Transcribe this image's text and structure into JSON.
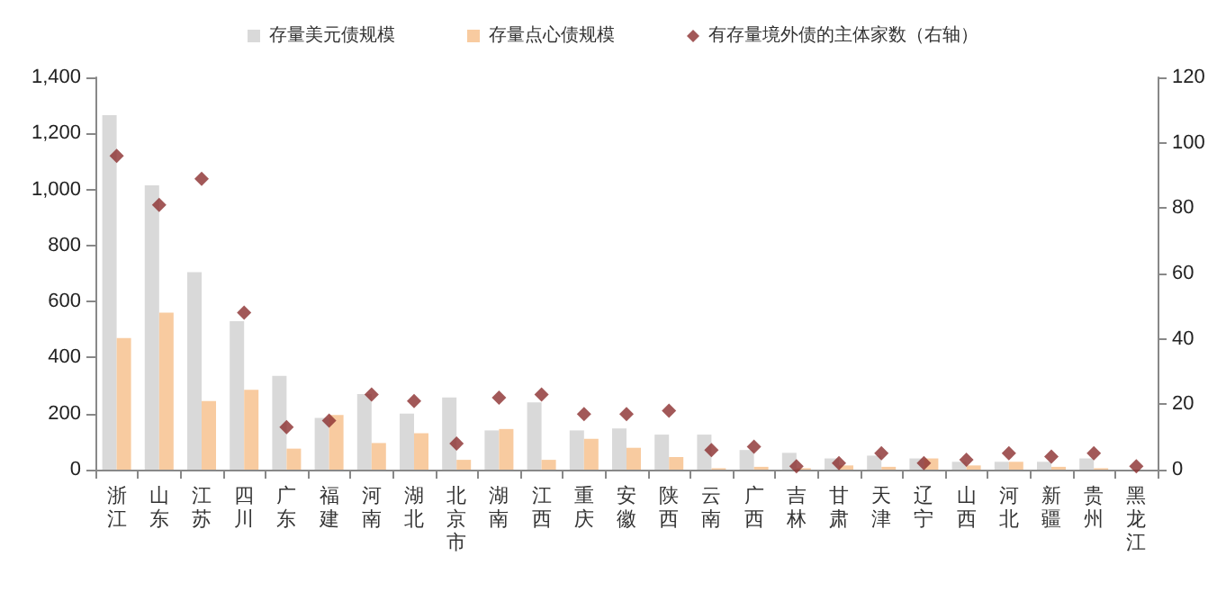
{
  "chart_data": {
    "type": "bar",
    "categories": [
      "浙江",
      "山东",
      "江苏",
      "四川",
      "广东",
      "福建",
      "河南",
      "湖北",
      "北京市",
      "湖南",
      "江西",
      "重庆",
      "安徽",
      "陕西",
      "云南",
      "广西",
      "吉林",
      "甘肃",
      "天津",
      "辽宁",
      "山西",
      "河北",
      "新疆",
      "贵州",
      "黑龙江"
    ],
    "series": [
      {
        "name": "存量美元债规模",
        "color": "#d9d9d9",
        "values": [
          1265,
          1015,
          705,
          530,
          335,
          185,
          270,
          200,
          258,
          140,
          240,
          140,
          147,
          125,
          125,
          70,
          60,
          40,
          50,
          40,
          28,
          28,
          28,
          40,
          null
        ]
      },
      {
        "name": "存量点心债规模",
        "color": "#f8cba0",
        "values": [
          470,
          560,
          245,
          285,
          75,
          195,
          95,
          130,
          35,
          145,
          35,
          110,
          78,
          45,
          5,
          10,
          5,
          15,
          10,
          40,
          15,
          28,
          10,
          5,
          0
        ]
      },
      {
        "name": "有存量境外债的主体家数（右轴）",
        "type": "scatter",
        "axis": "y2",
        "color": "#8b2e2e",
        "marker": "diamond",
        "values": [
          96,
          81,
          89,
          48,
          13,
          15,
          23,
          21,
          8,
          22,
          23,
          17,
          17,
          18,
          6,
          7,
          1,
          2,
          5,
          2,
          3,
          5,
          4,
          5,
          1
        ]
      }
    ],
    "ylim": [
      0,
      1400
    ],
    "yticks": [
      0,
      200,
      400,
      600,
      800,
      {
        "value": 1000,
        "label": "1,000"
      },
      {
        "value": 1200,
        "label": "1,200"
      },
      {
        "value": 1400,
        "label": "1,400"
      }
    ],
    "y2lim": [
      0,
      120
    ],
    "y2ticks": [
      0,
      20,
      40,
      60,
      80,
      100,
      120
    ],
    "legend": "top",
    "grid": false
  }
}
